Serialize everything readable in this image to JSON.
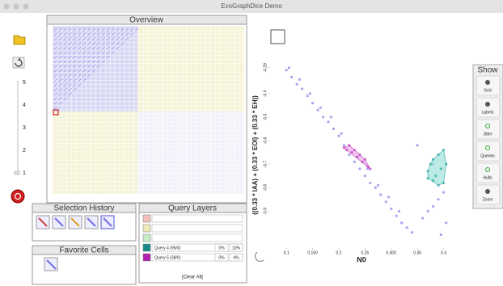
{
  "window_title": "EvoGraphDice Demo",
  "slider_labels": [
    "5",
    "4",
    "3",
    "2",
    "1"
  ],
  "overview": {
    "title": "Overview"
  },
  "selection_history": {
    "title": "Selection History"
  },
  "favorite_cells": {
    "title": "Favorite Cells"
  },
  "query_layers": {
    "title": "Query Layers",
    "rows": [
      {
        "color": "#f4c0b8"
      },
      {
        "color": "#eeeab8"
      },
      {
        "color": "#c8ecc8"
      },
      {
        "color": "#1a8a8a",
        "label": "Query 4 (95/0)",
        "a": "0%",
        "b": "10%"
      },
      {
        "color": "#b020b0",
        "label": "Query 5 (38/0)",
        "a": "0%",
        "b": "4%"
      }
    ],
    "clear": "[Clear All]"
  },
  "show_panel": {
    "title": "Show",
    "buttons": [
      "Grid",
      "Labels",
      "Jitter",
      "Queries",
      "Hulls",
      "Zoom"
    ]
  },
  "chart_data": {
    "type": "scatter",
    "xlabel": "N0",
    "ylabel": "((0.33 * IAA) + (0.33 * EOI) + (0.33 * EH))",
    "xlim": [
      0.075,
      0.41
    ],
    "ylim": [
      -1.05,
      -0.27
    ],
    "xticks": [
      0.1,
      {
        "value": 0.15,
        "label": "0.150"
      },
      0.2,
      0.25,
      {
        "value": 0.3,
        "label": "0.300"
      },
      0.35,
      0.4
    ],
    "yticks": [
      -0.29,
      -0.4,
      -0.5,
      -0.6,
      -0.7,
      -0.8,
      -0.9
    ],
    "series": [
      {
        "color": "#8a86e8",
        "x": [
          0.1,
          0.11,
          0.12,
          0.13,
          0.14,
          0.15,
          0.16,
          0.17,
          0.18,
          0.19,
          0.2,
          0.21,
          0.22,
          0.23,
          0.24,
          0.25,
          0.26,
          0.27,
          0.28,
          0.29,
          0.3,
          0.31,
          0.32,
          0.33,
          0.34,
          0.36,
          0.37,
          0.38,
          0.39,
          0.4,
          0.405,
          0.35,
          0.38,
          0.395,
          0.105,
          0.125,
          0.145,
          0.165,
          0.185,
          0.205,
          0.235,
          0.255,
          0.275,
          0.295,
          0.315
        ],
        "values": [
          -0.3,
          -0.33,
          -0.36,
          -0.38,
          -0.41,
          -0.44,
          -0.47,
          -0.5,
          -0.52,
          -0.55,
          -0.58,
          -0.62,
          -0.66,
          -0.69,
          -0.72,
          -0.75,
          -0.78,
          -0.8,
          -0.83,
          -0.86,
          -0.89,
          -0.92,
          -0.95,
          -0.97,
          -0.99,
          -0.93,
          -0.9,
          -0.88,
          -0.85,
          -0.82,
          -0.95,
          -0.62,
          -0.7,
          -1.0,
          -0.29,
          -0.34,
          -0.4,
          -0.46,
          -0.5,
          -0.57,
          -0.67,
          -0.72,
          -0.79,
          -0.84,
          -0.9
        ]
      },
      {
        "color": "#c040c0",
        "hull": "#e8a0e8",
        "x": [
          0.21,
          0.22,
          0.225,
          0.23,
          0.24,
          0.245,
          0.25,
          0.255,
          0.26,
          0.235,
          0.215
        ],
        "values": [
          -0.63,
          -0.62,
          -0.65,
          -0.64,
          -0.66,
          -0.69,
          -0.68,
          -0.71,
          -0.72,
          -0.67,
          -0.64
        ]
      },
      {
        "color": "#30a8a0",
        "hull": "#90dcd6",
        "x": [
          0.37,
          0.375,
          0.38,
          0.385,
          0.39,
          0.395,
          0.4,
          0.405,
          0.39,
          0.38,
          0.4,
          0.37
        ],
        "values": [
          -0.73,
          -0.7,
          -0.68,
          -0.75,
          -0.66,
          -0.72,
          -0.64,
          -0.7,
          -0.79,
          -0.77,
          -0.78,
          -0.76
        ]
      }
    ]
  }
}
